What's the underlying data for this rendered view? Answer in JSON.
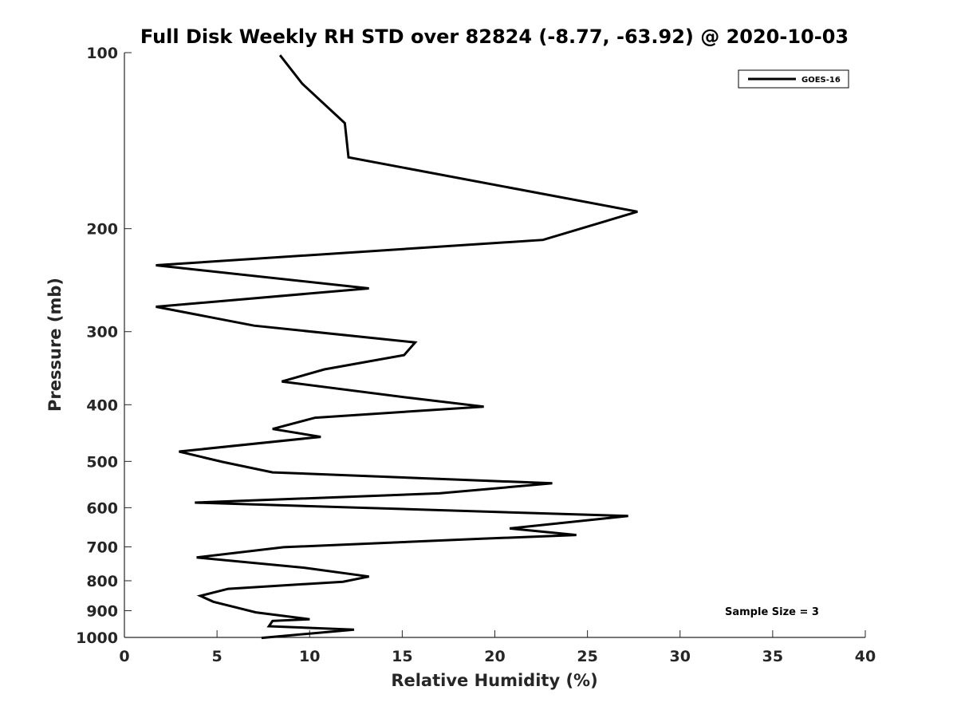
{
  "chart_data": {
    "type": "line",
    "title": "Full Disk Weekly RH STD over 82824 (-8.77, -63.92) @ 2020-10-03",
    "xlabel": "Relative Humidity (%)",
    "ylabel": "Pressure (mb)",
    "xlim": [
      0,
      40
    ],
    "ylim": [
      100,
      1000
    ],
    "y_scale": "log",
    "y_reversed": true,
    "grid": false,
    "legend_position": "top-right",
    "x_ticks": [
      0,
      5,
      10,
      15,
      20,
      25,
      30,
      35,
      40
    ],
    "x_tick_labels": [
      "0",
      "5",
      "10",
      "15",
      "20",
      "25",
      "30",
      "35",
      "40"
    ],
    "y_ticks": [
      100,
      200,
      300,
      400,
      500,
      600,
      700,
      800,
      900,
      1000
    ],
    "y_tick_labels": [
      "100",
      "200",
      "300",
      "400",
      "500",
      "600",
      "700",
      "800",
      "900",
      "1000"
    ],
    "annotation": "Sample Size = 3",
    "series": [
      {
        "name": "GOES-16",
        "color": "#000000",
        "x": [
          8.4,
          9.6,
          11.9,
          12.1,
          27.7,
          22.6,
          1.7,
          13.2,
          1.7,
          7.0,
          15.7,
          15.1,
          10.8,
          8.5,
          15.3,
          19.4,
          10.3,
          8.0,
          10.6,
          2.95,
          5.3,
          8.0,
          23.1,
          17.0,
          3.8,
          27.2,
          20.8,
          24.4,
          19.3,
          8.6,
          3.9,
          9.7,
          13.2,
          11.8,
          5.6,
          4.1,
          4.8,
          7.1,
          10.0,
          8.0,
          7.8,
          12.4,
          7.4
        ],
        "y": [
          101,
          113,
          132,
          151,
          187,
          209,
          231,
          253,
          272,
          293,
          313,
          329,
          348,
          365,
          389,
          403,
          421,
          440,
          454,
          481,
          501,
          522,
          545,
          567,
          588,
          620,
          651,
          668,
          678,
          701,
          730,
          760,
          787,
          803,
          826,
          849,
          869,
          906,
          931,
          937,
          957,
          970,
          1002
        ]
      }
    ]
  }
}
